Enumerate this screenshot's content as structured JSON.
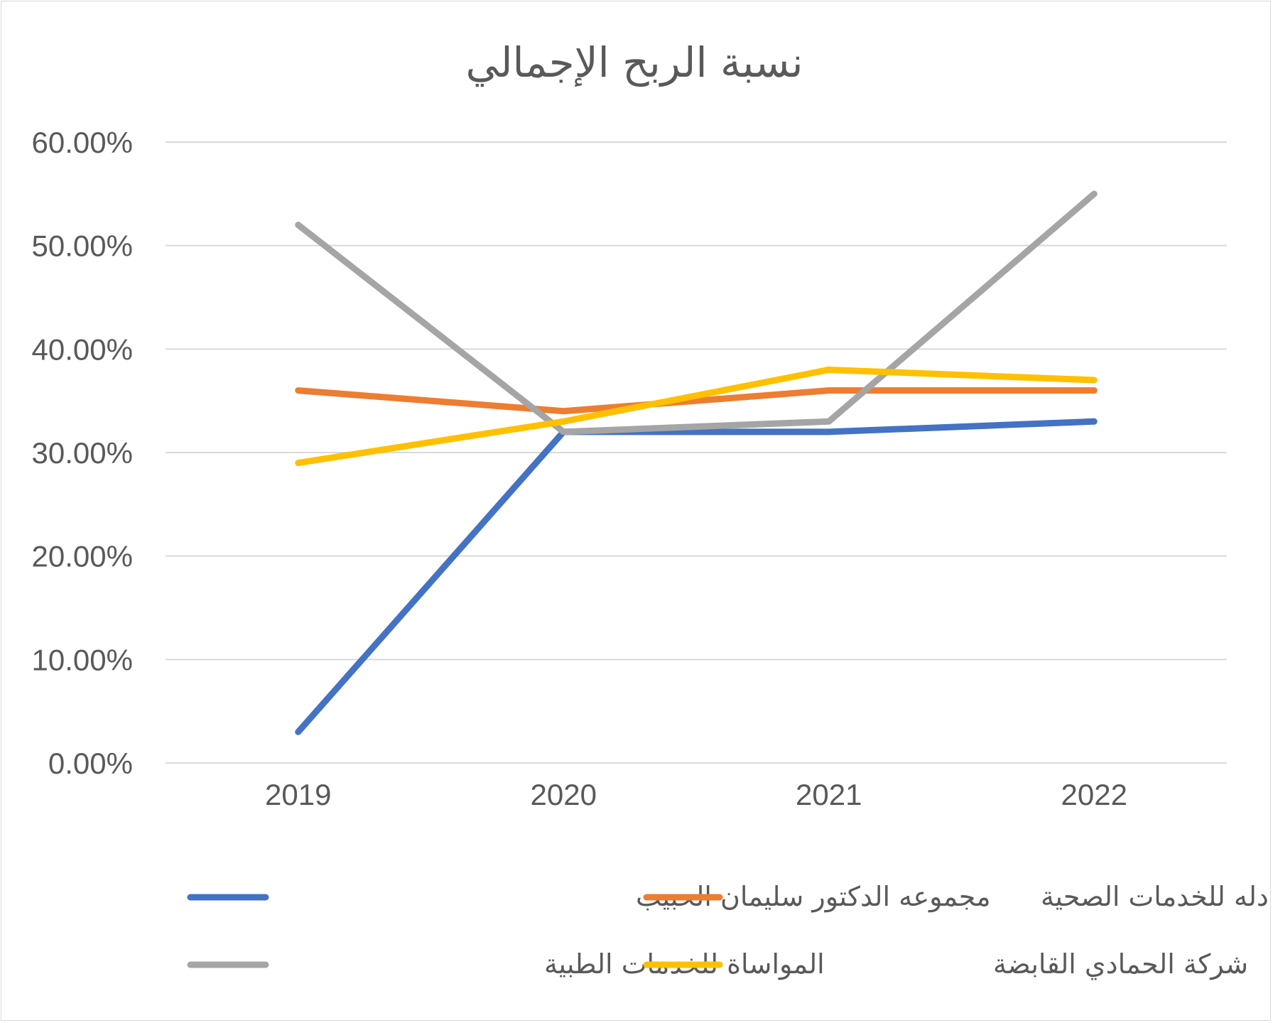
{
  "chart_data": {
    "type": "line",
    "title": "نسبة الربح الإجمالي",
    "xlabel": "",
    "ylabel": "",
    "categories": [
      "2019",
      "2020",
      "2021",
      "2022"
    ],
    "yticks": [
      "0.00%",
      "10.00%",
      "20.00%",
      "30.00%",
      "40.00%",
      "50.00%",
      "60.00%"
    ],
    "ylim": [
      0,
      0.6
    ],
    "grid": true,
    "legend_position": "bottom",
    "series": [
      {
        "name": "مجموعه الدكتور سليمان الحبيب",
        "color": "#4472C4",
        "values": [
          0.03,
          0.32,
          0.32,
          0.33
        ]
      },
      {
        "name": "شركة دله للخدمات الصحية",
        "color": "#ED7D31",
        "values": [
          0.36,
          0.34,
          0.36,
          0.36
        ]
      },
      {
        "name": "المواساة للخدمات الطبية",
        "color": "#A5A5A5",
        "values": [
          0.52,
          0.32,
          0.33,
          0.55
        ]
      },
      {
        "name": "شركة الحمادي القابضة",
        "color": "#FFC000",
        "values": [
          0.29,
          0.33,
          0.38,
          0.37
        ]
      }
    ]
  }
}
